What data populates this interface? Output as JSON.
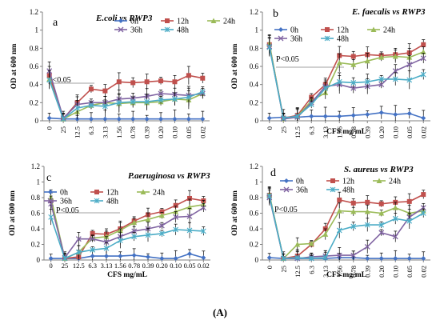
{
  "figure_label": "(A)",
  "chart_data": [
    {
      "type": "line",
      "panel_label": "a",
      "title": "E.coli vs RWP3",
      "xlabel": "",
      "ylabel": "OD at 600 nm",
      "annotation": "P<0.05",
      "categories": [
        "0",
        "25",
        "12.5",
        "6.3",
        "3.13",
        "1.56",
        "0.78",
        "0.39",
        "0.20",
        "0.10",
        "0.05",
        "0.02"
      ],
      "ylim": [
        0,
        1.2
      ],
      "yticks": [
        "0",
        "0.2",
        "0.4",
        "0.6",
        "0.8",
        "1",
        "1.2"
      ],
      "series": [
        {
          "name": "0h",
          "color": "#4472C4",
          "marker": "diamond",
          "values": [
            0.03,
            0.02,
            0.02,
            0.02,
            0.02,
            0.02,
            0.02,
            0.02,
            0.02,
            0.02,
            0.02,
            0.02
          ]
        },
        {
          "name": "12h",
          "color": "#C0504D",
          "marker": "square",
          "values": [
            0.5,
            0.02,
            0.2,
            0.35,
            0.33,
            0.43,
            0.42,
            0.43,
            0.44,
            0.43,
            0.5,
            0.47
          ]
        },
        {
          "name": "24h",
          "color": "#9BBB59",
          "marker": "triangle",
          "values": [
            0.46,
            0.02,
            0.1,
            0.17,
            0.2,
            0.19,
            0.2,
            0.2,
            0.21,
            0.24,
            0.23,
            0.3
          ]
        },
        {
          "name": "36h",
          "color": "#8064A2",
          "marker": "x",
          "values": [
            0.55,
            0.03,
            0.18,
            0.2,
            0.2,
            0.24,
            0.25,
            0.27,
            0.3,
            0.29,
            0.28,
            0.3
          ]
        },
        {
          "name": "48h",
          "color": "#4BACC6",
          "marker": "star",
          "values": [
            0.45,
            0.02,
            0.14,
            0.17,
            0.16,
            0.2,
            0.21,
            0.21,
            0.23,
            0.24,
            0.26,
            0.32
          ]
        }
      ]
    },
    {
      "type": "line",
      "panel_label": "b",
      "title": "E. faecalis vs RWP3",
      "xlabel": "CFS mg/mL",
      "ylabel": "OD at 600 nm",
      "annotation": "P<0.05",
      "categories": [
        "0",
        "25",
        "12.5",
        "6.3",
        "3.13",
        "1.56",
        "0.78",
        "0.39",
        "0.20",
        "0.10",
        "0.05",
        "0.02"
      ],
      "ylim": [
        0,
        1.2
      ],
      "yticks": [
        "0",
        "0.2",
        "0.4",
        "0.6",
        "0.8",
        "1",
        "1.2"
      ],
      "series": [
        {
          "name": "0h",
          "color": "#4472C4",
          "marker": "diamond",
          "values": [
            0.03,
            0.04,
            0.04,
            0.05,
            0.05,
            0.05,
            0.06,
            0.07,
            0.09,
            0.07,
            0.08,
            0.03
          ]
        },
        {
          "name": "12h",
          "color": "#C0504D",
          "marker": "square",
          "values": [
            0.84,
            0.03,
            0.06,
            0.26,
            0.4,
            0.72,
            0.71,
            0.73,
            0.72,
            0.73,
            0.75,
            0.84
          ]
        },
        {
          "name": "24h",
          "color": "#9BBB59",
          "marker": "triangle",
          "values": [
            0.85,
            0.02,
            0.05,
            0.22,
            0.31,
            0.64,
            0.62,
            0.66,
            0.7,
            0.71,
            0.7,
            0.76
          ]
        },
        {
          "name": "36h",
          "color": "#8064A2",
          "marker": "x",
          "values": [
            0.82,
            0.02,
            0.04,
            0.2,
            0.38,
            0.4,
            0.36,
            0.38,
            0.4,
            0.55,
            0.62,
            0.69
          ]
        },
        {
          "name": "48h",
          "color": "#4BACC6",
          "marker": "star",
          "values": [
            0.81,
            0.03,
            0.05,
            0.18,
            0.36,
            0.43,
            0.42,
            0.43,
            0.46,
            0.46,
            0.45,
            0.51
          ]
        }
      ]
    },
    {
      "type": "line",
      "panel_label": "c",
      "title": "P.aeruginosa vs RWP3",
      "xlabel": "CFS mg/mL",
      "ylabel": "OD at 600 nm",
      "annotation": "P<0.05",
      "categories": [
        "0",
        "25",
        "12.5",
        "6.3",
        "3.13",
        "1.56",
        "0.78",
        "0.39",
        "0.20",
        "0.10",
        "0.05",
        "0.02"
      ],
      "ylim": [
        0,
        1.2
      ],
      "yticks": [
        "0",
        "0.2",
        "0.4",
        "0.6",
        "0.8",
        "1",
        "1.2"
      ],
      "series": [
        {
          "name": "0h",
          "color": "#4472C4",
          "marker": "diamond",
          "values": [
            0.02,
            0.02,
            0.02,
            0.05,
            0.05,
            0.05,
            0.06,
            0.04,
            0.02,
            0.02,
            0.08,
            0.03
          ]
        },
        {
          "name": "12h",
          "color": "#C0504D",
          "marker": "square",
          "values": [
            0.76,
            0.02,
            0.04,
            0.34,
            0.33,
            0.4,
            0.5,
            0.58,
            0.62,
            0.7,
            0.79,
            0.76
          ]
        },
        {
          "name": "24h",
          "color": "#9BBB59",
          "marker": "triangle",
          "values": [
            0.8,
            0.02,
            0.1,
            0.28,
            0.3,
            0.38,
            0.48,
            0.52,
            0.57,
            0.62,
            0.68,
            0.71
          ]
        },
        {
          "name": "36h",
          "color": "#8064A2",
          "marker": "x",
          "values": [
            0.72,
            0.03,
            0.27,
            0.27,
            0.23,
            0.3,
            0.37,
            0.4,
            0.44,
            0.55,
            0.56,
            0.67
          ]
        },
        {
          "name": "48h",
          "color": "#4BACC6",
          "marker": "star",
          "values": [
            0.55,
            0.02,
            0.1,
            0.13,
            0.15,
            0.25,
            0.3,
            0.32,
            0.34,
            0.39,
            0.38,
            0.37
          ]
        }
      ]
    },
    {
      "type": "line",
      "panel_label": "d",
      "title": "S. aureus vs RWP3",
      "xlabel": "CFS mg/mL",
      "ylabel": "OD at 600 nm",
      "annotation": "P<0.05",
      "categories": [
        "0",
        "25",
        "12.5",
        "6.3",
        "3.13",
        "1.56",
        "0.78",
        "0.39",
        "0.20",
        "0.10",
        "0.05",
        "0.02"
      ],
      "ylim": [
        0,
        1.2
      ],
      "yticks": [
        "0",
        "0.2",
        "0.4",
        "0.6",
        "0.8",
        "1",
        "1.2"
      ],
      "series": [
        {
          "name": "0h",
          "color": "#4472C4",
          "marker": "diamond",
          "values": [
            0.03,
            0.02,
            0.02,
            0.02,
            0.02,
            0.03,
            0.03,
            0.02,
            0.02,
            0.02,
            0.02,
            0.02
          ]
        },
        {
          "name": "12h",
          "color": "#C0504D",
          "marker": "square",
          "values": [
            0.83,
            0.02,
            0.05,
            0.2,
            0.4,
            0.77,
            0.73,
            0.74,
            0.72,
            0.74,
            0.75,
            0.84
          ]
        },
        {
          "name": "24h",
          "color": "#9BBB59",
          "marker": "triangle",
          "values": [
            0.84,
            0.02,
            0.2,
            0.21,
            0.33,
            0.63,
            0.62,
            0.62,
            0.6,
            0.67,
            0.6,
            0.63
          ]
        },
        {
          "name": "36h",
          "color": "#8064A2",
          "marker": "x",
          "values": [
            0.8,
            0.02,
            0.02,
            0.04,
            0.05,
            0.06,
            0.06,
            0.17,
            0.35,
            0.3,
            0.55,
            0.67
          ]
        },
        {
          "name": "48h",
          "color": "#4BACC6",
          "marker": "star",
          "values": [
            0.82,
            0.02,
            0.03,
            0.02,
            0.03,
            0.38,
            0.43,
            0.45,
            0.45,
            0.53,
            0.5,
            0.6
          ]
        }
      ]
    }
  ]
}
